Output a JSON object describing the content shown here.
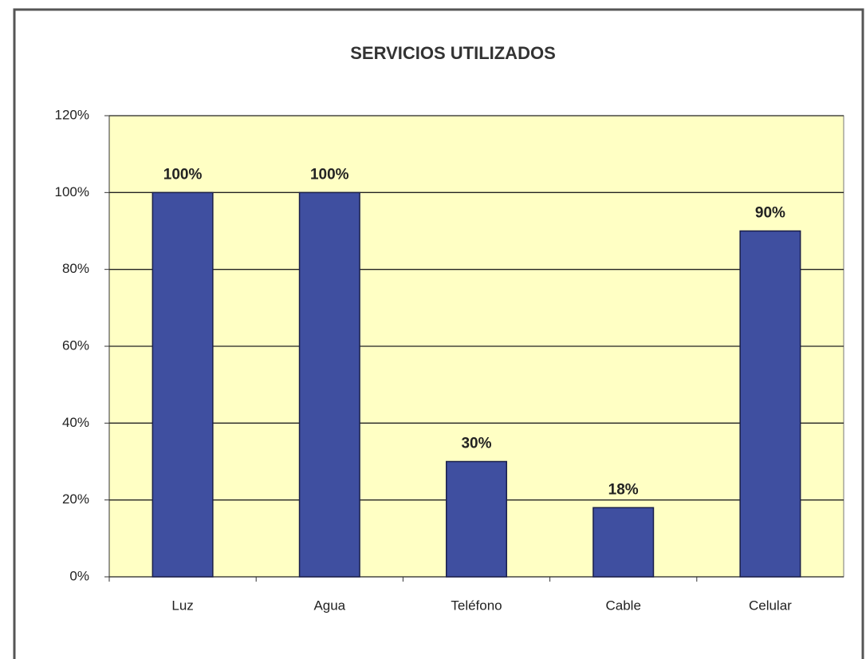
{
  "chart_data": {
    "type": "bar",
    "title": "SERVICIOS UTILIZADOS",
    "categories": [
      "Luz",
      "Agua",
      "Teléfono",
      "Cable",
      "Celular"
    ],
    "values": [
      100,
      100,
      30,
      18,
      90
    ],
    "value_labels": [
      "100%",
      "100%",
      "30%",
      "18%",
      "90%"
    ],
    "color": "#3f4fa0",
    "ylim": [
      0,
      120
    ],
    "yticks": [
      {
        "value": 0,
        "label": "0%"
      },
      {
        "value": 20,
        "label": "20%"
      },
      {
        "value": 40,
        "label": "40%"
      },
      {
        "value": 60,
        "label": "60%"
      },
      {
        "value": 80,
        "label": "80%"
      },
      {
        "value": 100,
        "label": "100%"
      },
      {
        "value": 120,
        "label": "120%"
      }
    ],
    "grid": true
  }
}
